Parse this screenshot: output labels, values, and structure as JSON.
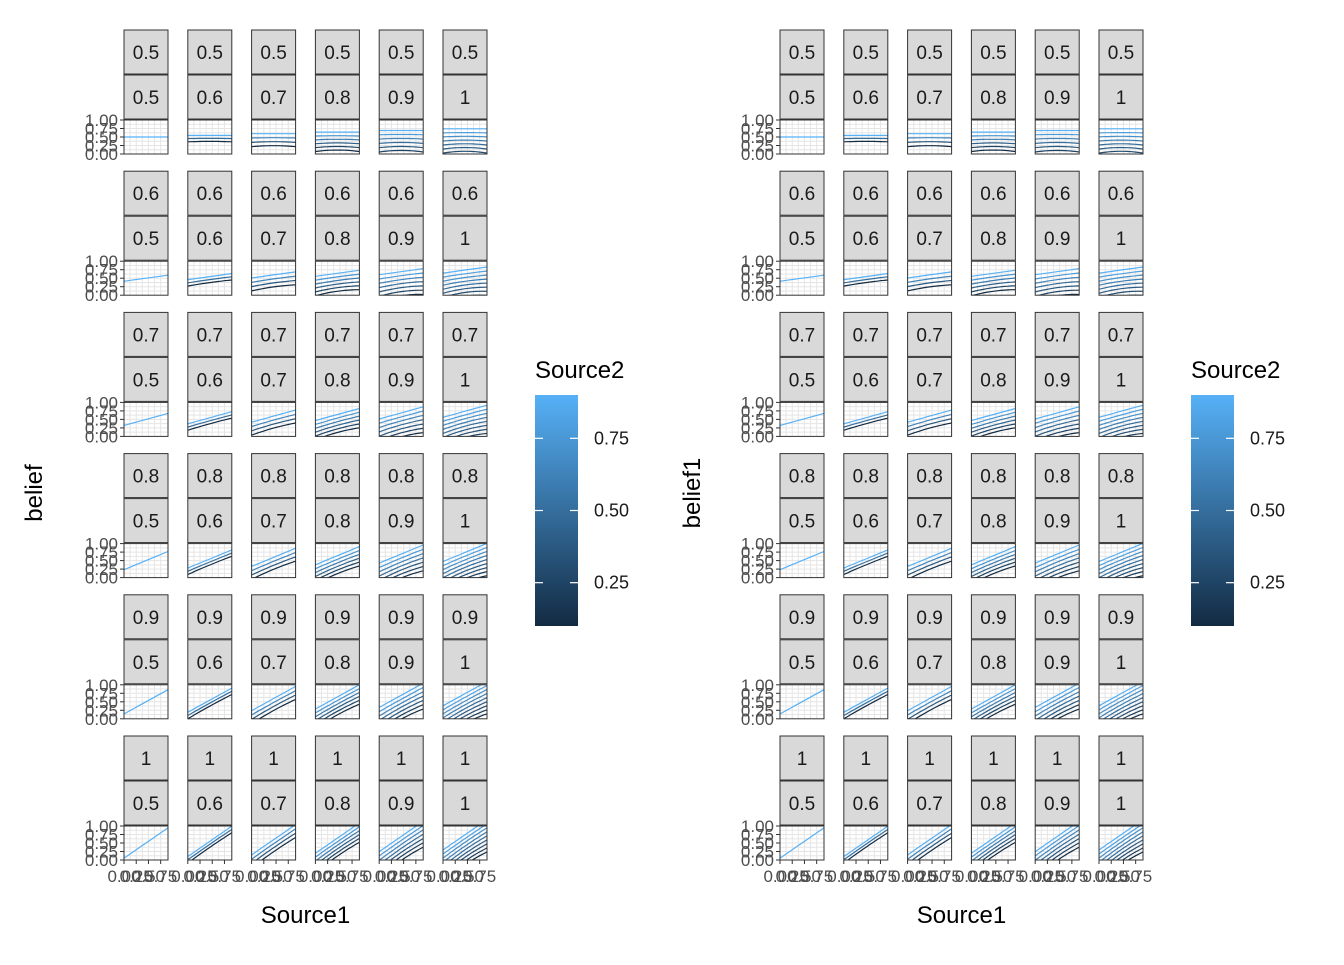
{
  "chart_data": [
    {
      "type": "line",
      "facet_layout": "6x6 grid, two strip rows per panel",
      "row_strips": [
        "0.5",
        "0.6",
        "0.7",
        "0.8",
        "0.9",
        "1"
      ],
      "col_strips": [
        "0.5",
        "0.6",
        "0.7",
        "0.8",
        "0.9",
        "1"
      ],
      "ylabel": "belief",
      "xlabel": "Source1",
      "y_ticks": [
        "0.00",
        "0.25",
        "0.50",
        "0.75",
        "1.00"
      ],
      "x_ticks": [
        "0.00",
        "0.25",
        "0.50",
        "0.75"
      ],
      "ylim": [
        0,
        1
      ],
      "xlim": [
        0,
        0.9
      ],
      "series_encoding": "one line per Source2 value, colored by Source2",
      "legend": {
        "title": "Source2",
        "type": "continuous colorbar",
        "position": "right",
        "range": [
          0.1,
          0.9
        ],
        "breaks": [
          "0.25",
          "0.50",
          "0.75"
        ],
        "low_color": "#132B43",
        "high_color": "#56B1F7"
      },
      "grid": true
    },
    {
      "type": "line",
      "facet_layout": "6x6 grid, two strip rows per panel",
      "row_strips": [
        "0.5",
        "0.6",
        "0.7",
        "0.8",
        "0.9",
        "1"
      ],
      "col_strips": [
        "0.5",
        "0.6",
        "0.7",
        "0.8",
        "0.9",
        "1"
      ],
      "ylabel": "belief1",
      "xlabel": "Source1",
      "y_ticks": [
        "0.00",
        "0.25",
        "0.50",
        "0.75",
        "1.00"
      ],
      "x_ticks": [
        "0.00",
        "0.25",
        "0.50",
        "0.75"
      ],
      "ylim": [
        0,
        1
      ],
      "xlim": [
        0,
        0.9
      ],
      "series_encoding": "one line per Source2 value, colored by Source2",
      "legend": {
        "title": "Source2",
        "type": "continuous colorbar",
        "position": "right",
        "range": [
          0.1,
          0.9
        ],
        "breaks": [
          "0.25",
          "0.50",
          "0.75"
        ],
        "low_color": "#132B43",
        "high_color": "#56B1F7"
      },
      "grid": true
    }
  ]
}
